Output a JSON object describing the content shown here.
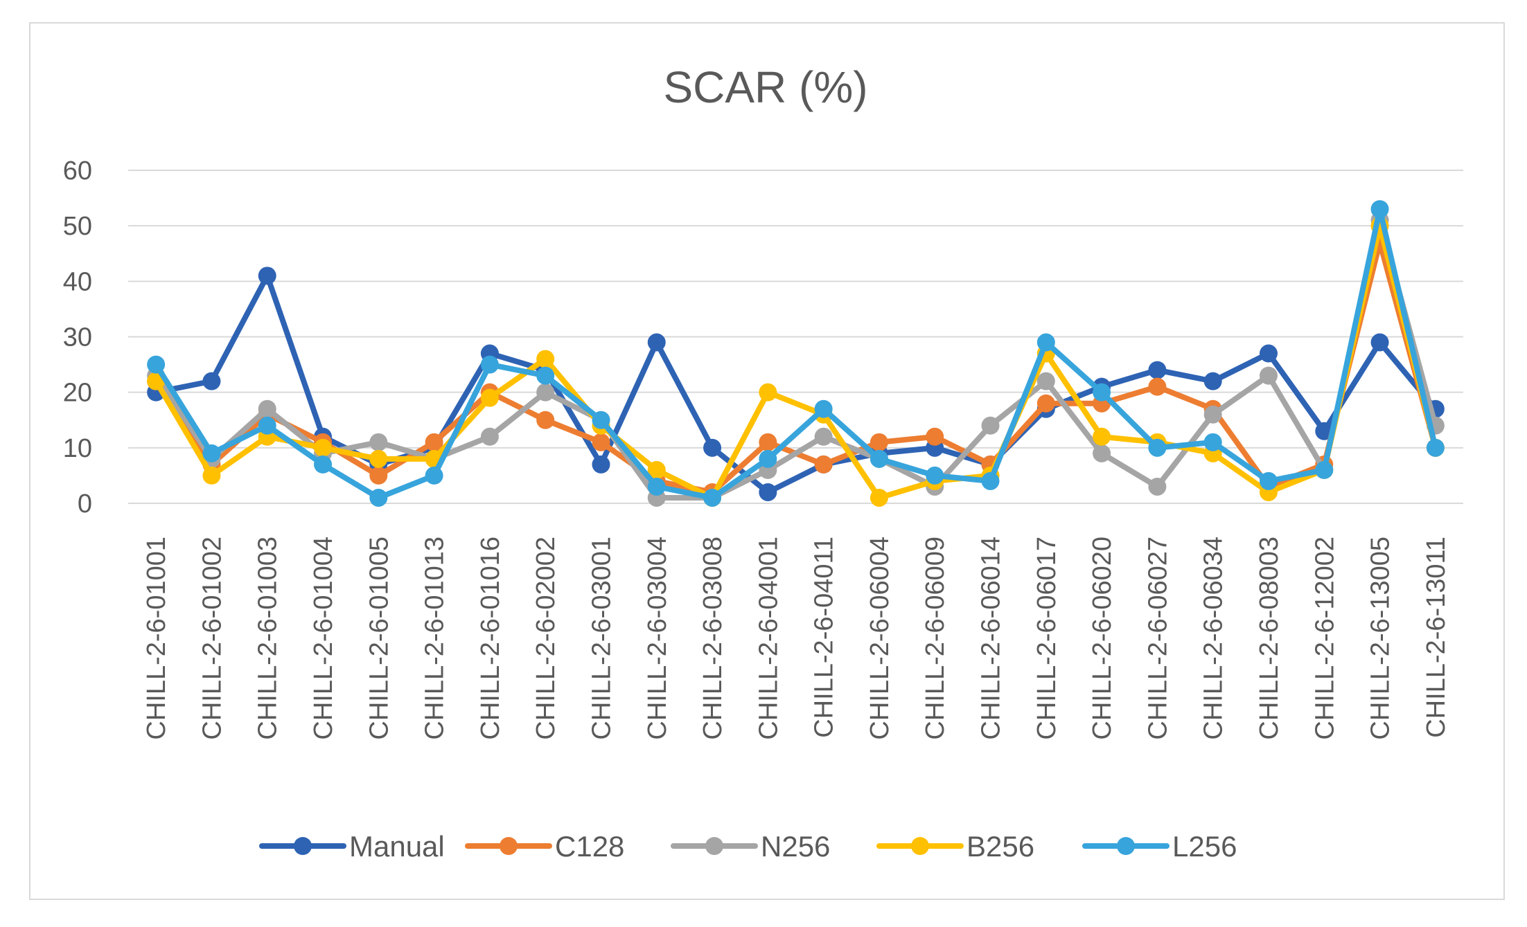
{
  "chart_data": {
    "type": "line",
    "title": "SCAR (%)",
    "xlabel": "",
    "ylabel": "",
    "ylim": [
      0,
      60
    ],
    "yticks": [
      0,
      10,
      20,
      30,
      40,
      50,
      60
    ],
    "grid": true,
    "legend_position": "bottom",
    "categories": [
      "CHILL-2-6-01001",
      "CHILL-2-6-01002",
      "CHILL-2-6-01003",
      "CHILL-2-6-01004",
      "CHILL-2-6-01005",
      "CHILL-2-6-01013",
      "CHILL-2-6-01016",
      "CHILL-2-6-02002",
      "CHILL-2-6-03001",
      "CHILL-2-6-03004",
      "CHILL-2-6-03008",
      "CHILL-2-6-04001",
      "CHILL-2-6-04011",
      "CHILL-2-6-06004",
      "CHILL-2-6-06009",
      "CHILL-2-6-06014",
      "CHILL-2-6-06017",
      "CHILL-2-6-06020",
      "CHILL-2-6-06027",
      "CHILL-2-6-06034",
      "CHILL-2-6-08003",
      "CHILL-2-6-12002",
      "CHILL-2-6-13005",
      "CHILL-2-6-13011"
    ],
    "series": [
      {
        "name": "Manual",
        "color": "#2e63b4",
        "values": [
          20,
          22,
          41,
          12,
          7,
          10,
          27,
          24,
          7,
          29,
          10,
          2,
          7,
          9,
          10,
          7,
          17,
          21,
          24,
          22,
          27,
          13,
          29,
          17
        ]
      },
      {
        "name": "C128",
        "color": "#ed7d31",
        "values": [
          22,
          7,
          16,
          11,
          5,
          11,
          20,
          15,
          11,
          4,
          2,
          11,
          7,
          11,
          12,
          7,
          18,
          18,
          21,
          17,
          3,
          7,
          47,
          10
        ]
      },
      {
        "name": "N256",
        "color": "#a5a5a5",
        "values": [
          23,
          8,
          17,
          9,
          11,
          8,
          12,
          20,
          15,
          1,
          1,
          6,
          12,
          8,
          3,
          14,
          22,
          9,
          3,
          16,
          23,
          6,
          51,
          14
        ]
      },
      {
        "name": "B256",
        "color": "#ffc000",
        "values": [
          22,
          5,
          12,
          10,
          8,
          8,
          19,
          26,
          14,
          6,
          1,
          20,
          16,
          1,
          4,
          5,
          27,
          12,
          11,
          9,
          2,
          6,
          50,
          10
        ]
      },
      {
        "name": "L256",
        "color": "#37a4dc",
        "values": [
          25,
          9,
          14,
          7,
          1,
          5,
          25,
          23,
          15,
          3,
          1,
          8,
          17,
          8,
          5,
          4,
          29,
          20,
          10,
          11,
          4,
          6,
          53,
          10
        ]
      }
    ]
  }
}
